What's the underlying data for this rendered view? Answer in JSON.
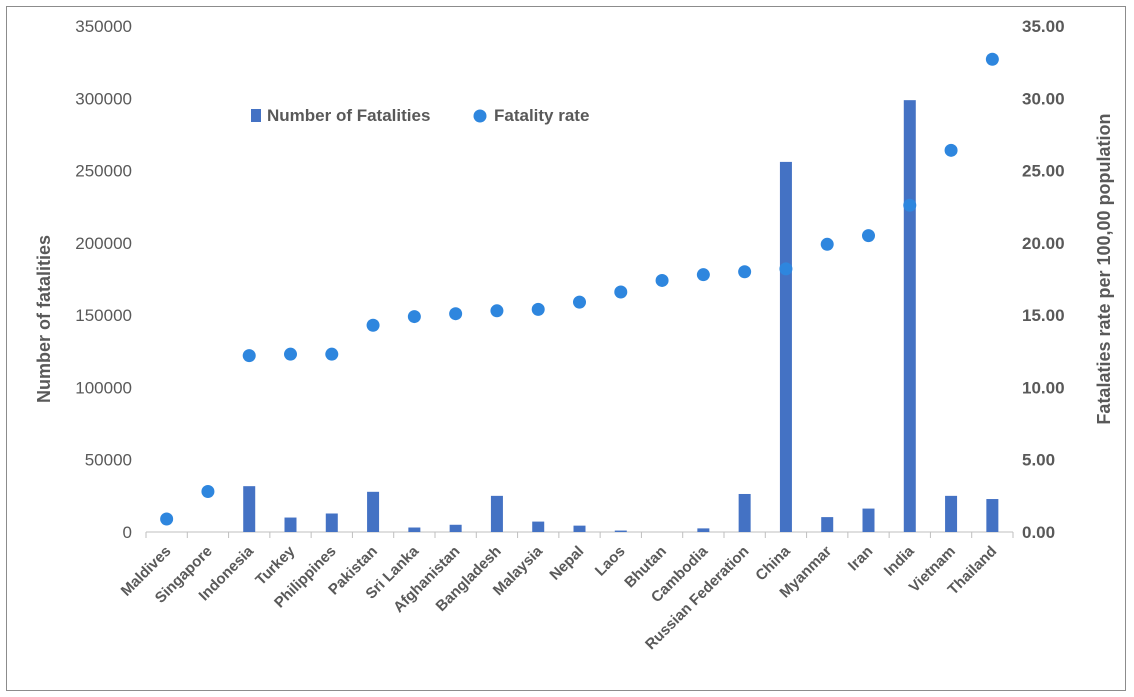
{
  "chart_data": {
    "type": "bar",
    "categories": [
      "Maldives",
      "Singapore",
      "Indonesia",
      "Turkey",
      "Philippines",
      "Pakistan",
      "Sri Lanka",
      "Afghanistan",
      "Bangladesh",
      "Malaysia",
      "Nepal",
      "Laos",
      "Bhutan",
      "Cambodia",
      "Russian Federation",
      "China",
      "Myanmar",
      "Iran",
      "India",
      "Vietnam",
      "Thailand"
    ],
    "series": [
      {
        "name": "Number of Fatalities",
        "kind": "bar",
        "axis": "left",
        "color": "#4472c4",
        "values": [
          0,
          0,
          31700,
          10000,
          12800,
          27800,
          3100,
          5000,
          25000,
          7200,
          4400,
          1000,
          0,
          2500,
          26300,
          256000,
          10300,
          16200,
          298700,
          25000,
          22800
        ]
      },
      {
        "name": "Fatality rate",
        "kind": "scatter",
        "axis": "right",
        "color": "#2e86de",
        "values": [
          0.9,
          2.8,
          12.2,
          12.3,
          12.3,
          14.3,
          14.9,
          15.1,
          15.3,
          15.4,
          15.9,
          16.6,
          17.4,
          17.8,
          18.0,
          18.2,
          19.9,
          20.5,
          22.6,
          26.4,
          32.7
        ]
      }
    ],
    "y_left": {
      "label": "Number of fatalities",
      "range": [
        0,
        350000
      ],
      "ticks": [
        "0",
        "50000",
        "100000",
        "150000",
        "200000",
        "250000",
        "300000",
        "350000"
      ]
    },
    "y_right": {
      "label": "Fatalaties rate per 100,00 population",
      "range": [
        0,
        35
      ],
      "ticks": [
        "0.00",
        "5.00",
        "10.00",
        "15.00",
        "20.00",
        "25.00",
        "30.00",
        "35.00"
      ]
    },
    "legend": {
      "placement": "top-left inside"
    },
    "grid": false
  }
}
